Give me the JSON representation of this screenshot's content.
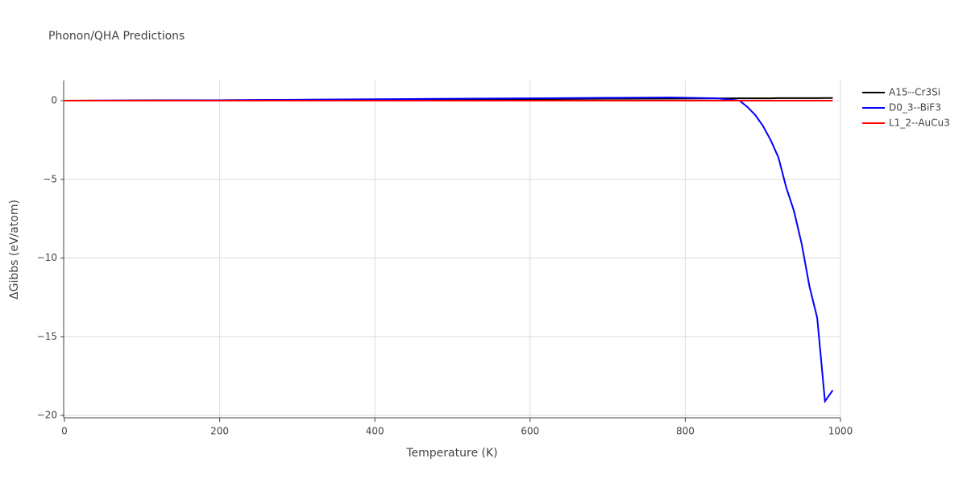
{
  "chart_data": {
    "type": "line",
    "title": "Phonon/QHA Predictions",
    "x_label": "Temperature (K)",
    "y_label": "ΔGibbs (eV/atom)",
    "x": [
      0,
      100,
      200,
      300,
      400,
      500,
      600,
      700,
      780,
      840,
      860,
      870,
      880,
      890,
      900,
      910,
      920,
      930,
      940,
      950,
      960,
      970,
      980,
      990
    ],
    "series": [
      {
        "name": "A15--Cr3Si",
        "color": "#000000",
        "values": [
          0,
          0.02,
          0.03,
          0.05,
          0.07,
          0.08,
          0.1,
          0.12,
          0.13,
          0.14,
          0.15,
          0.15,
          0.15,
          0.15,
          0.15,
          0.15,
          0.16,
          0.16,
          0.16,
          0.16,
          0.16,
          0.16,
          0.17,
          0.17
        ]
      },
      {
        "name": "D0_3--BiF3",
        "color": "#0000ff",
        "values": [
          0,
          0.01,
          0.03,
          0.06,
          0.09,
          0.12,
          0.15,
          0.18,
          0.2,
          0.15,
          0.06,
          0,
          -0.4,
          -0.9,
          -1.6,
          -2.5,
          -3.6,
          -5.5,
          -7.0,
          -9.1,
          -11.8,
          -13.8,
          -19.1,
          -18.4
        ]
      },
      {
        "name": "L1_2--AuCu3",
        "color": "#ff0000",
        "values": [
          0,
          0,
          0,
          0,
          0,
          0,
          0,
          0,
          0,
          0,
          0,
          0,
          0,
          0,
          0,
          0,
          0,
          0,
          0,
          0,
          0,
          0,
          0,
          0
        ]
      }
    ],
    "xlim": [
      0,
      1000
    ],
    "xticks": [
      0,
      200,
      400,
      600,
      800,
      1000
    ],
    "ylim": [
      -20.15,
      1.28
    ],
    "yticks": [
      {
        "value": -20,
        "label": "−20"
      },
      {
        "value": -15,
        "label": "−15"
      },
      {
        "value": -10,
        "label": "−10"
      },
      {
        "value": -5,
        "label": "−5"
      },
      0
    ],
    "grid": true,
    "legend": "right"
  }
}
